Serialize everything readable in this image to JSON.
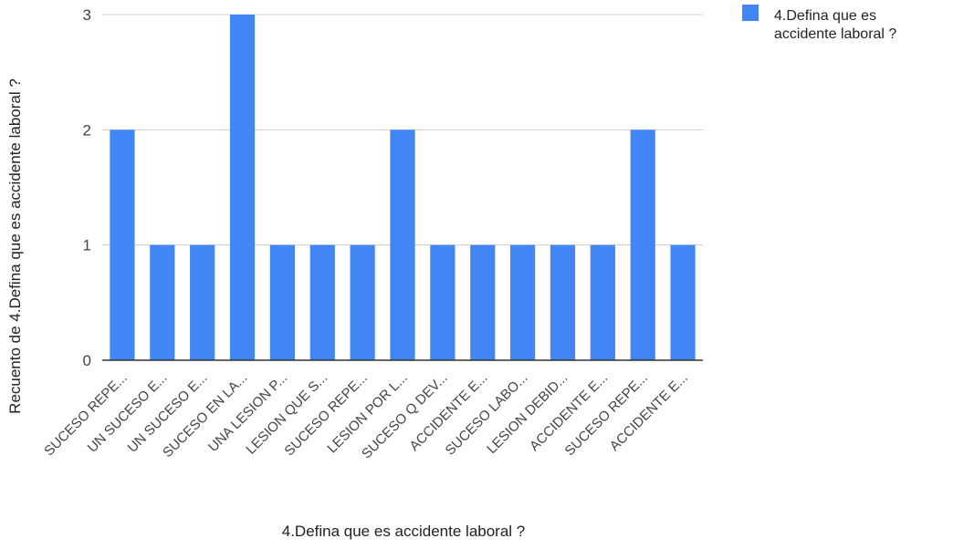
{
  "chart_data": {
    "type": "bar",
    "categories": [
      "SUCESO REPE...",
      "UN SUCESO E...",
      "UN SUCESO E...",
      "SUCESO EN LA...",
      "UNA LESION P...",
      "LESION QUE S...",
      "SUCESO REPE...",
      "LESION POR L...",
      "SUCESO Q DEV...",
      "ACCIDENTE E...",
      "SUCESO LABO...",
      "LESION DEBID...",
      "ACCIDENTE E...",
      "SUCESO REPE...",
      "ACCIDENTE E..."
    ],
    "series": [
      {
        "name": "4.Defina que es accidente laboral ?",
        "values": [
          2,
          1,
          1,
          3,
          1,
          1,
          1,
          2,
          1,
          1,
          1,
          1,
          1,
          2,
          1
        ]
      }
    ],
    "xlabel": "4.Defina que es accidente laboral ?",
    "ylabel": "Recuento de 4.Defina que es accidente laboral ?",
    "ylim": [
      0,
      3
    ],
    "yticks": [
      "0",
      "1",
      "2",
      "3"
    ],
    "grid": true,
    "legend_position": "top-right",
    "legend_lines": [
      "4.Defina que es",
      "accidente laboral ?"
    ],
    "colors": {
      "bar": "#4285f4",
      "grid": "#cccccc",
      "axis": "#333333"
    }
  }
}
